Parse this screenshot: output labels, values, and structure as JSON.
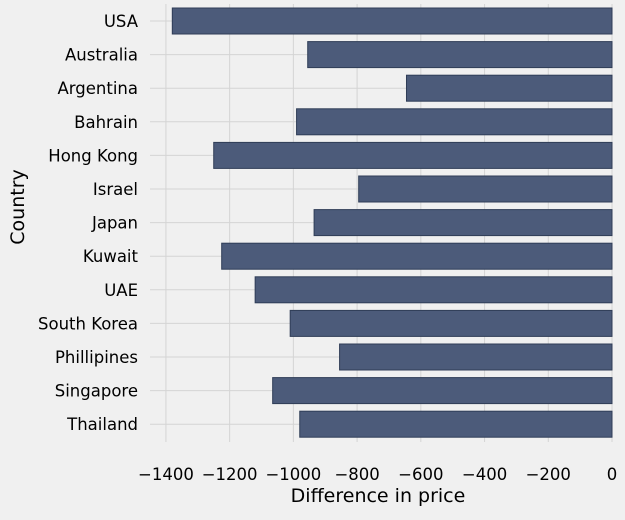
{
  "chart_data": {
    "type": "bar",
    "orientation": "horizontal",
    "categories": [
      "USA",
      "Australia",
      "Argentina",
      "Bahrain",
      "Hong Kong",
      "Israel",
      "Japan",
      "Kuwait",
      "UAE",
      "South Korea",
      "Phillipines",
      "Singapore",
      "Thailand"
    ],
    "values": [
      -1380,
      -955,
      -645,
      -990,
      -1250,
      -795,
      -935,
      -1225,
      -1120,
      -1010,
      -855,
      -1065,
      -980
    ],
    "xlabel": "Difference in price",
    "ylabel": "Country",
    "xlim": [
      -1450,
      0
    ],
    "xticks": [
      -1400,
      -1200,
      -1000,
      -800,
      -600,
      -400,
      -200,
      0
    ],
    "xtick_labels": [
      "−1400",
      "−1200",
      "−1000",
      "−800",
      "−600",
      "−400",
      "−200",
      "0"
    ],
    "grid": true,
    "legend": "none",
    "colors": {
      "bar": "#4c5b7a",
      "bar_edge": "#2f3d57",
      "grid": "#d4d4d4",
      "background": "#f0f0f0"
    }
  }
}
